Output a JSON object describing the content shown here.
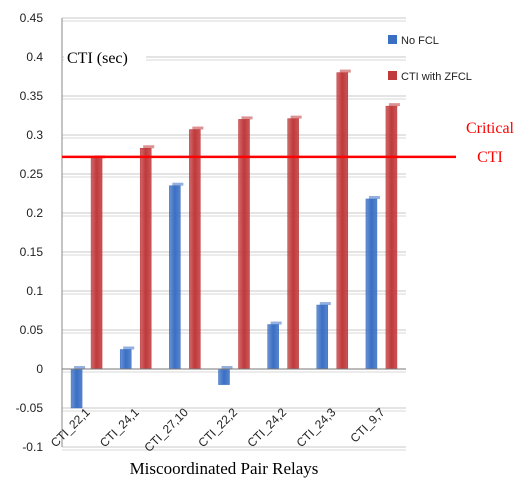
{
  "chart_data": {
    "type": "bar",
    "title": "",
    "ylabel": "CTI (sec)",
    "xlabel": "Miscoordinated Pair Relays",
    "ylim": [
      -0.1,
      0.45
    ],
    "yticks": [
      "-0.1",
      "-0.05",
      "0",
      "0.05",
      "0.1",
      "0.15",
      "0.2",
      "0.25",
      "0.3",
      "0.35",
      "0.4",
      "0.45"
    ],
    "ytick_values": [
      -0.1,
      -0.05,
      0,
      0.05,
      0.1,
      0.15,
      0.2,
      0.25,
      0.3,
      0.35,
      0.4,
      0.45
    ],
    "categories": [
      "CTI_22,1",
      "CTI_24,1",
      "CTI_27,10",
      "CTI_22,2",
      "CTI_24,2",
      "CTI_24,3",
      "CTI_9,7"
    ],
    "series": [
      {
        "name": "No FCL",
        "color": "#3a6fc4",
        "values": [
          -0.05,
          0.025,
          0.235,
          -0.02,
          0.057,
          0.082,
          0.218
        ]
      },
      {
        "name": "CTI with ZFCL",
        "color": "#c0393b",
        "values": [
          0.27,
          0.283,
          0.307,
          0.32,
          0.321,
          0.38,
          0.337
        ]
      }
    ],
    "reference_line": {
      "label_line1": "Critical",
      "label_line2": "CTI",
      "value": 0.272,
      "color": "#ff0000"
    },
    "grid": true,
    "legend_position": "top-right"
  }
}
